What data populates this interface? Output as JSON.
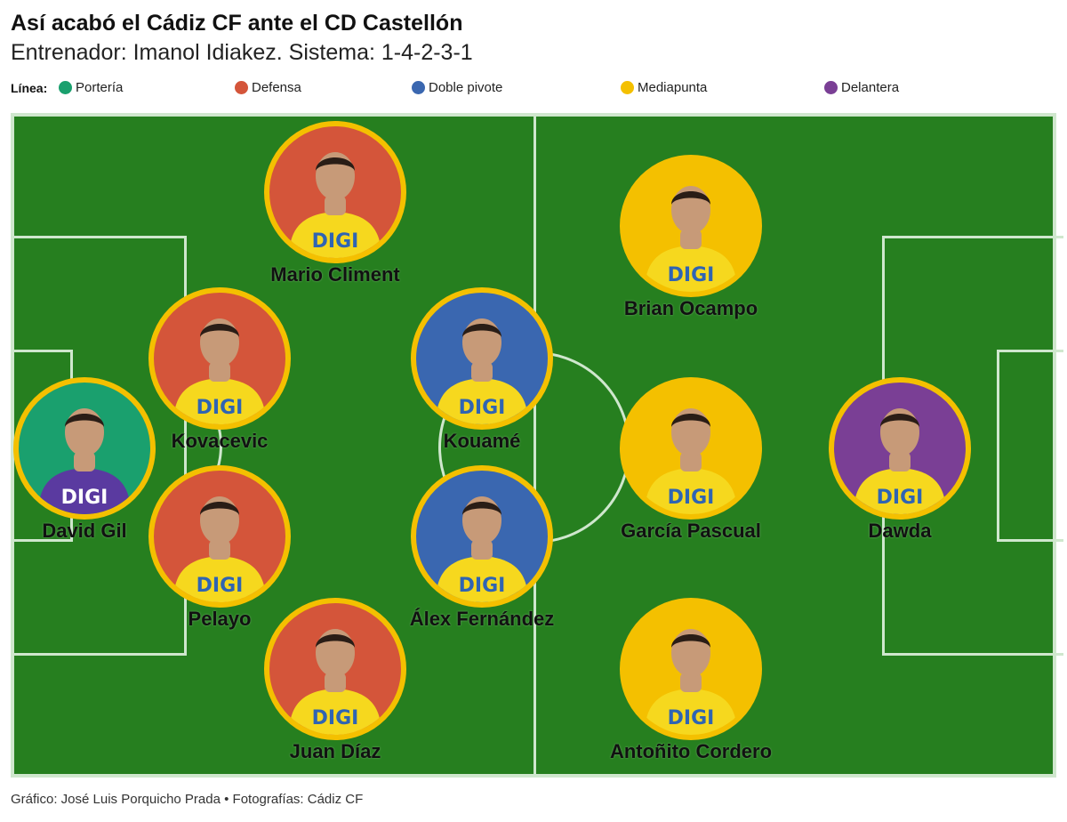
{
  "title": "Así acabó el Cádiz CF ante el CD Castellón",
  "subtitle": "Entrenador: Imanol Idiakez. Sistema: 1-4-2-3-1",
  "legend": {
    "label": "Línea:",
    "items": [
      {
        "label": "Portería",
        "color": "#1aa06e"
      },
      {
        "label": "Defensa",
        "color": "#d4553a"
      },
      {
        "label": "Doble pivote",
        "color": "#3a67b0"
      },
      {
        "label": "Mediapunta",
        "color": "#f4c000"
      },
      {
        "label": "Delantera",
        "color": "#7a3f95"
      }
    ]
  },
  "colors": {
    "pitch": "#267f1f",
    "lines": "#cfe7cd",
    "ring": "#f4c000",
    "shirt_outfield": "#f6d81e",
    "shirt_keeper": "#5a3aa0",
    "sponsor_text": "#2f64b3",
    "skin": "#c79a78"
  },
  "sponsor": "DIGI",
  "players": [
    {
      "name": "David Gil",
      "line": "Portería",
      "color": "#1aa06e",
      "keeper": true
    },
    {
      "name": "Mario Climent",
      "line": "Defensa",
      "color": "#d4553a",
      "keeper": false
    },
    {
      "name": "Kovacevic",
      "line": "Defensa",
      "color": "#d4553a",
      "keeper": false
    },
    {
      "name": "Pelayo",
      "line": "Defensa",
      "color": "#d4553a",
      "keeper": false
    },
    {
      "name": "Juan Díaz",
      "line": "Defensa",
      "color": "#d4553a",
      "keeper": false
    },
    {
      "name": "Kouamé",
      "line": "Doble pivote",
      "color": "#3a67b0",
      "keeper": false
    },
    {
      "name": "Álex Fernández",
      "line": "Doble pivote",
      "color": "#3a67b0",
      "keeper": false
    },
    {
      "name": "Brian Ocampo",
      "line": "Mediapunta",
      "color": "#f4c000",
      "keeper": false
    },
    {
      "name": "García Pascual",
      "line": "Mediapunta",
      "color": "#f4c000",
      "keeper": false
    },
    {
      "name": "Antoñito Cordero",
      "line": "Mediapunta",
      "color": "#f4c000",
      "keeper": false
    },
    {
      "name": "Dawda",
      "line": "Delantera",
      "color": "#7a3f95",
      "keeper": false
    }
  ],
  "credit": "Gráfico: José Luis Porquicho Prada • Fotografías: Cádiz CF"
}
